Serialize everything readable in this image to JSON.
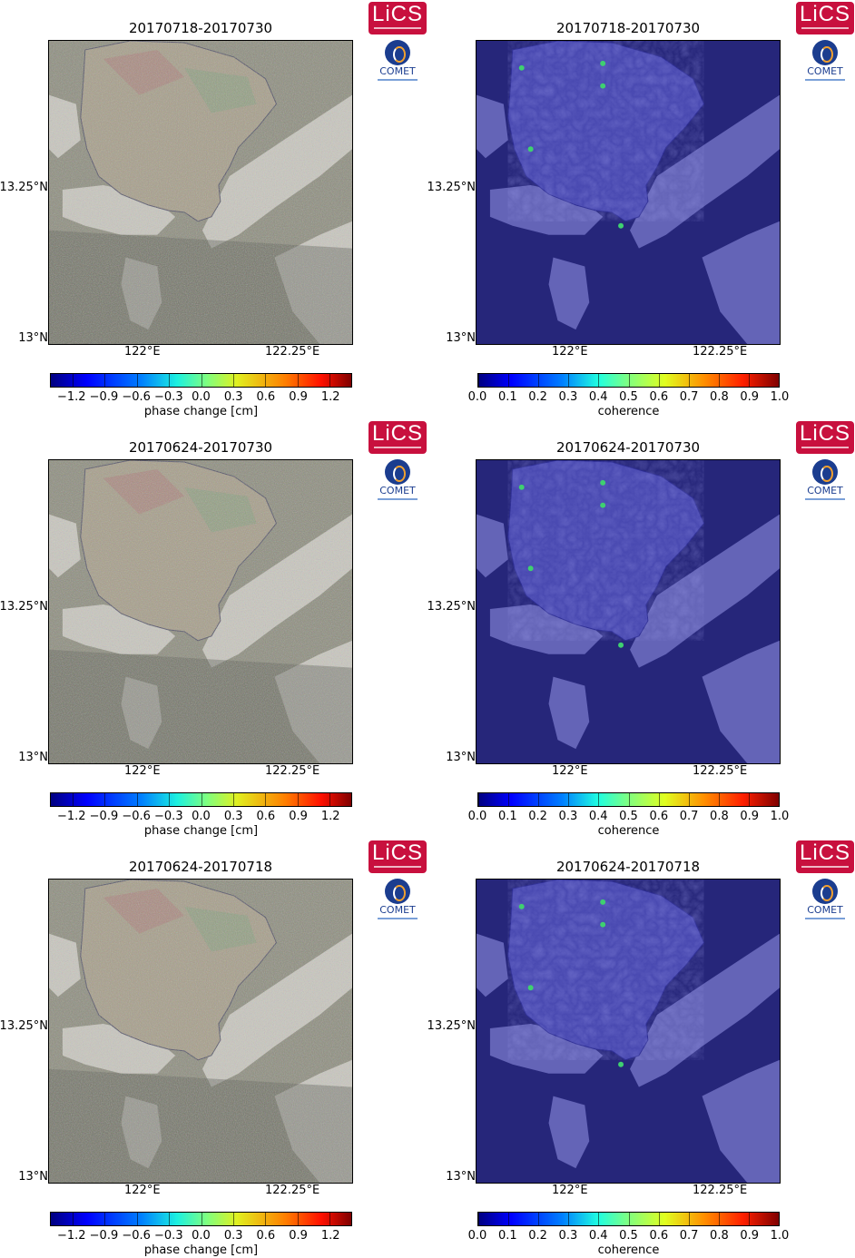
{
  "panels": [
    {
      "title": "20170718-20170730",
      "kind": "phase"
    },
    {
      "title": "20170718-20170730",
      "kind": "coherence"
    },
    {
      "title": "20170624-20170730",
      "kind": "phase"
    },
    {
      "title": "20170624-20170730",
      "kind": "coherence"
    },
    {
      "title": "20170624-20170718",
      "kind": "phase"
    },
    {
      "title": "20170624-20170718",
      "kind": "coherence"
    }
  ],
  "axes": {
    "y_ticks": [
      "13.25°N",
      "13°N"
    ],
    "x_ticks": [
      "122°E",
      "122.25°E"
    ]
  },
  "colorbars": {
    "phase": {
      "label": "phase change [cm]",
      "ticks": [
        "−1.2",
        "−0.9",
        "−0.6",
        "−0.3",
        "0.0",
        "0.3",
        "0.6",
        "0.9",
        "1.2"
      ],
      "range": [
        -1.4,
        1.4
      ],
      "tick_values": [
        -1.2,
        -0.9,
        -0.6,
        -0.3,
        0.0,
        0.3,
        0.6,
        0.9,
        1.2
      ]
    },
    "coherence": {
      "label": "coherence",
      "ticks": [
        "0.0",
        "0.1",
        "0.2",
        "0.3",
        "0.4",
        "0.5",
        "0.6",
        "0.7",
        "0.8",
        "0.9",
        "1.0"
      ],
      "range": [
        0.0,
        1.0
      ],
      "tick_values": [
        0.0,
        0.1,
        0.2,
        0.3,
        0.4,
        0.5,
        0.6,
        0.7,
        0.8,
        0.9,
        1.0
      ]
    }
  },
  "logos": {
    "lics": "LiCS",
    "comet": "COMET"
  },
  "colors": {
    "coherence_bg": "#26267a",
    "phase_gray": "#8a8a7a",
    "lics_red": "#c8103e"
  }
}
